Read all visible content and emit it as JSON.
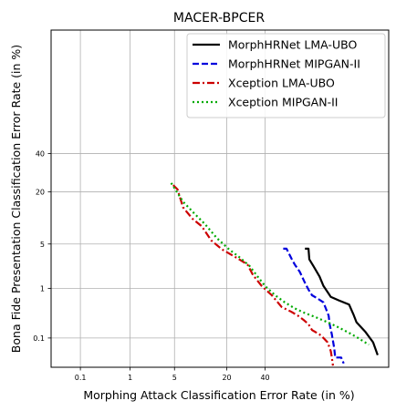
{
  "chart_data": {
    "type": "line",
    "title": "MACER-BPCER",
    "xlabel": "Morphing Attack Classification Error Rate (in %)",
    "ylabel": "Bona Fide Presentation Classification Error Rate (in %)",
    "axis_scale": "probit (normal deviate)",
    "xlim": [
      0.02,
      95
    ],
    "ylim": [
      0.02,
      95
    ],
    "x_ticks": [
      "0.1",
      "1",
      "5",
      "20",
      "40"
    ],
    "y_ticks": [
      "0.1",
      "1",
      "5",
      "20",
      "40"
    ],
    "x_tick_values": [
      0.1,
      1,
      5,
      20,
      40
    ],
    "y_tick_values": [
      0.1,
      1,
      5,
      20,
      40
    ],
    "grid": true,
    "legend_position": "top-right",
    "series": [
      {
        "name": "MorphHRNet LMA-UBO",
        "color": "#000000",
        "style": "solid",
        "points": [
          [
            64,
            4.3
          ],
          [
            66,
            4.3
          ],
          [
            66.5,
            3.0
          ],
          [
            69,
            2.3
          ],
          [
            72,
            1.6
          ],
          [
            74,
            1.1
          ],
          [
            76.5,
            0.8
          ],
          [
            77.5,
            0.7
          ],
          [
            81,
            0.6
          ],
          [
            85,
            0.5
          ],
          [
            86.5,
            0.32
          ],
          [
            87.5,
            0.22
          ],
          [
            90,
            0.14
          ],
          [
            92,
            0.08
          ],
          [
            93,
            0.04
          ]
        ]
      },
      {
        "name": "MorphHRNet MIPGAN-II",
        "color": "#0000dd",
        "style": "dashed",
        "points": [
          [
            51,
            4.3
          ],
          [
            53,
            4.3
          ],
          [
            56,
            3.1
          ],
          [
            58,
            2.5
          ],
          [
            61,
            1.9
          ],
          [
            64,
            1.25
          ],
          [
            66,
            0.95
          ],
          [
            68,
            0.75
          ],
          [
            71,
            0.65
          ],
          [
            74,
            0.55
          ],
          [
            76.5,
            0.3
          ],
          [
            77,
            0.2
          ],
          [
            78,
            0.12
          ],
          [
            79,
            0.06
          ],
          [
            79.5,
            0.035
          ],
          [
            82,
            0.035
          ],
          [
            83,
            0.025
          ]
        ]
      },
      {
        "name": "Xception LMA-UBO",
        "color": "#cc0000",
        "style": "dashdot",
        "points": [
          [
            4.8,
            23
          ],
          [
            5.5,
            21
          ],
          [
            6.5,
            14
          ],
          [
            8.5,
            10.5
          ],
          [
            11,
            8.5
          ],
          [
            14,
            5.6
          ],
          [
            18,
            4.2
          ],
          [
            25,
            3.1
          ],
          [
            30,
            2.5
          ],
          [
            33,
            1.7
          ],
          [
            38,
            1.1
          ],
          [
            44,
            0.75
          ],
          [
            50,
            0.45
          ],
          [
            56,
            0.36
          ],
          [
            60,
            0.3
          ],
          [
            63,
            0.25
          ],
          [
            66,
            0.2
          ],
          [
            68,
            0.15
          ],
          [
            72,
            0.12
          ],
          [
            74,
            0.1
          ],
          [
            76,
            0.08
          ],
          [
            77.5,
            0.05
          ],
          [
            78,
            0.035
          ],
          [
            78.5,
            0.022
          ]
        ]
      },
      {
        "name": "Xception MIPGAN-II",
        "color": "#00aa00",
        "style": "dotted",
        "points": [
          [
            4.5,
            24
          ],
          [
            6.5,
            16
          ],
          [
            9,
            12
          ],
          [
            12,
            9
          ],
          [
            16,
            6
          ],
          [
            21,
            4.2
          ],
          [
            26,
            3.2
          ],
          [
            31,
            2.4
          ],
          [
            36,
            1.55
          ],
          [
            40,
            1.1
          ],
          [
            46,
            0.75
          ],
          [
            52,
            0.55
          ],
          [
            58,
            0.42
          ],
          [
            64,
            0.34
          ],
          [
            70,
            0.28
          ],
          [
            76,
            0.22
          ],
          [
            81,
            0.17
          ],
          [
            85,
            0.13
          ],
          [
            88,
            0.1
          ],
          [
            91,
            0.07
          ]
        ]
      }
    ]
  }
}
